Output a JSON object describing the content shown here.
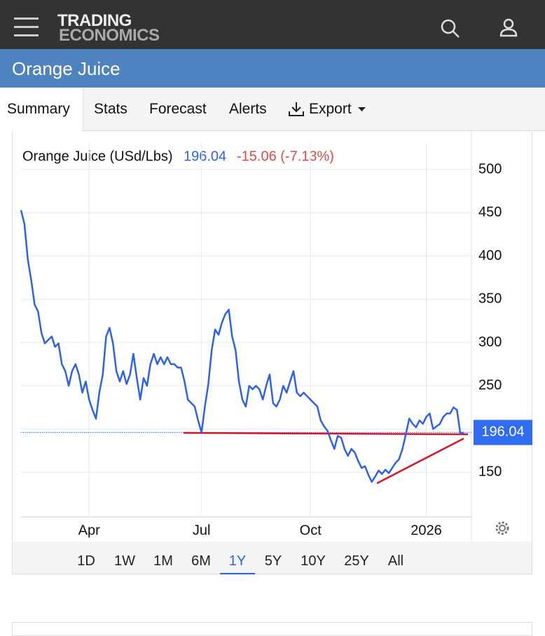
{
  "header": {
    "logo_top": "TRADING",
    "logo_bottom": "ECONOMICS"
  },
  "page_title": "Orange Juice",
  "tabs": [
    "Summary",
    "Stats",
    "Forecast",
    "Alerts",
    "Export"
  ],
  "active_tab": "Summary",
  "chart_data": {
    "type": "line",
    "series": [
      {
        "name": "Orange Juice (USd/Lbs)",
        "color": "#2e62e6",
        "values": [
          453,
          437,
          396,
          372,
          344,
          336,
          311,
          299,
          303,
          307,
          295,
          299,
          275,
          267,
          250,
          267,
          275,
          263,
          242,
          255,
          234,
          222,
          212,
          242,
          263,
          307,
          317,
          299,
          267,
          255,
          267,
          252,
          263,
          287,
          259,
          234,
          259,
          250,
          275,
          287,
          275,
          283,
          275,
          283,
          275,
          275,
          271,
          271,
          255,
          234,
          230,
          226,
          210,
          196,
          226,
          252,
          291,
          315,
          309,
          323,
          333,
          338,
          307,
          291,
          255,
          234,
          226,
          250,
          246,
          250,
          246,
          234,
          250,
          263,
          230,
          226,
          234,
          250,
          242,
          255,
          267,
          242,
          238,
          242,
          238,
          234,
          230,
          226,
          210,
          203,
          198,
          187,
          177,
          192,
          190,
          177,
          169,
          177,
          173,
          163,
          155,
          157,
          147,
          139,
          145,
          152,
          148,
          153,
          149,
          155,
          161,
          165,
          177,
          194,
          212,
          206,
          202,
          210,
          206,
          214,
          218,
          200,
          203,
          206,
          214,
          218,
          218,
          225,
          222,
          195,
          196.04
        ]
      }
    ],
    "change": "-15.06 (-7.13%)",
    "ylim": [
      100,
      530
    ],
    "yticks": [
      150,
      200,
      250,
      300,
      350,
      400,
      450,
      500
    ],
    "yticks_shown": [
      150,
      250,
      300,
      350,
      400,
      450,
      500
    ],
    "xticks": [
      {
        "value": 20,
        "label": "Apr"
      },
      {
        "value": 53,
        "label": "Jul"
      },
      {
        "value": 85,
        "label": "Oct"
      },
      {
        "value": 119,
        "label": "2026"
      }
    ],
    "grid": true
  },
  "range_buttons": [
    "1D",
    "1W",
    "1M",
    "6M",
    "1Y",
    "5Y",
    "10Y",
    "25Y",
    "All"
  ],
  "active_range": "1Y"
}
